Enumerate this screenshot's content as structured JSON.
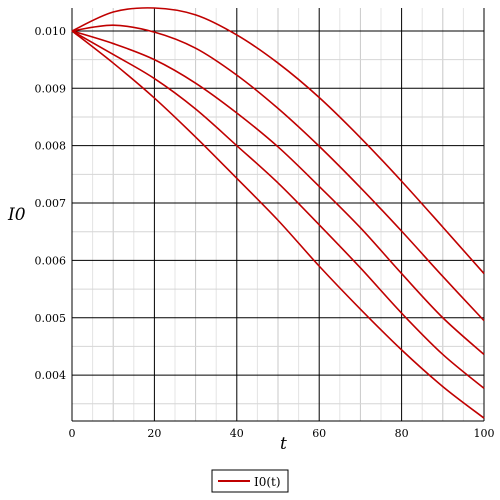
{
  "chart_data": {
    "type": "line",
    "xlabel": "t",
    "ylabel": "I0",
    "xlim": [
      0,
      100
    ],
    "ylim": [
      0.0032,
      0.0104
    ],
    "x_ticks": [
      0,
      20,
      40,
      60,
      80,
      100
    ],
    "x_tick_labels": [
      "0",
      "20",
      "40",
      "60",
      "80",
      "100"
    ],
    "y_ticks": [
      0.004,
      0.005,
      0.006,
      0.007,
      0.008,
      0.009,
      0.01
    ],
    "y_tick_labels": [
      "0.004",
      "0.005",
      "0.006",
      "0.007",
      "0.008",
      "0.009",
      "0.010"
    ],
    "grid": true,
    "legend": {
      "position": "bottom",
      "entries": [
        "I0(t)"
      ]
    },
    "line_color": "#c00000",
    "x": [
      0,
      10,
      20,
      30,
      40,
      50,
      60,
      70,
      80,
      90,
      100
    ],
    "series": [
      {
        "values": [
          0.01,
          0.01033,
          0.0104,
          0.01028,
          0.00993,
          0.00944,
          0.00884,
          0.00814,
          0.00738,
          0.00658,
          0.00577
        ]
      },
      {
        "values": [
          0.01,
          0.0101,
          0.00998,
          0.0097,
          0.00923,
          0.00865,
          0.00799,
          0.00727,
          0.00651,
          0.00572,
          0.00495
        ]
      },
      {
        "values": [
          0.01,
          0.00978,
          0.0095,
          0.00909,
          0.00857,
          0.00798,
          0.00729,
          0.00657,
          0.00577,
          0.005,
          0.00436
        ]
      },
      {
        "values": [
          0.01,
          0.00959,
          0.00917,
          0.00864,
          0.008,
          0.00735,
          0.00662,
          0.00587,
          0.00508,
          0.00436,
          0.00377
        ]
      },
      {
        "values": [
          0.01,
          0.00944,
          0.00883,
          0.00815,
          0.00743,
          0.0067,
          0.0059,
          0.00515,
          0.00444,
          0.0038,
          0.00325
        ]
      }
    ]
  }
}
